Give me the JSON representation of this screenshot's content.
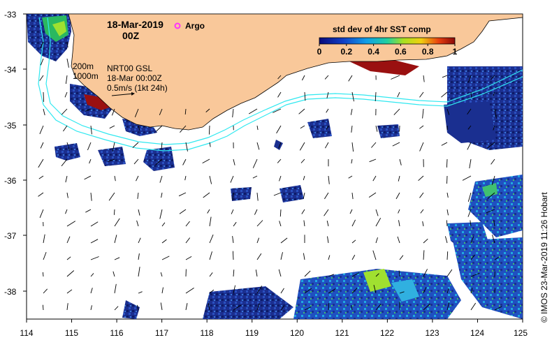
{
  "map": {
    "date_label": "18-Mar-2019",
    "time_label": "00Z",
    "argo_label": "Argo",
    "contour_labels": [
      "200m",
      "1000m"
    ],
    "product_label": "NRT00 GSL",
    "product_time": "18-Mar 00:00Z",
    "scale_label": "0.5m/s (1kt 24h)",
    "colorbar": {
      "title": "std dev of 4hr SST comp",
      "ticks": [
        "0",
        "0.2",
        "0.4",
        "0.6",
        "0.8",
        "1"
      ],
      "range": [
        0,
        1
      ]
    },
    "lon_ticks": [
      "114",
      "115",
      "116",
      "117",
      "118",
      "119",
      "120",
      "121",
      "122",
      "123",
      "124",
      "125"
    ],
    "lat_ticks": [
      "-33",
      "-34",
      "-35",
      "-36",
      "-37",
      "-38"
    ],
    "lon_range": [
      114,
      125
    ],
    "lat_range": [
      -38.5,
      -33
    ],
    "credit": "© IMOS 23-Mar-2019 11:26 Hobart",
    "colors": {
      "land": "#f9c89a",
      "contour": "#30e8f0",
      "argo": "#ff33ff",
      "sst_low": "#1a2f8a",
      "sst_high": "#9a1010"
    }
  }
}
